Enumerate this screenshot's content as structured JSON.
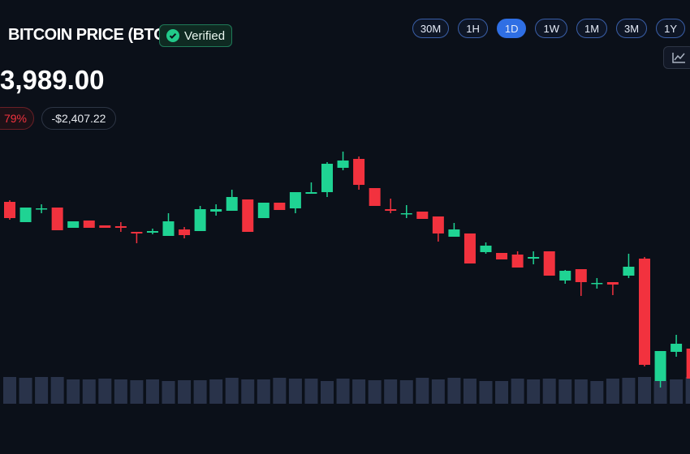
{
  "header": {
    "title": "BITCOIN PRICE (BTC)",
    "badge": "Verified"
  },
  "price": "3,989.00",
  "changes": [
    "79%",
    "-$2,407.22"
  ],
  "timeframes": {
    "options": [
      "30M",
      "1H",
      "1D",
      "1W",
      "1M",
      "3M",
      "1Y"
    ],
    "active": "1D"
  },
  "chart_data": {
    "type": "candlestick",
    "up_color": "#1fd393",
    "down_color": "#f2323e",
    "volume_color": "#29334a",
    "ylim": [
      0,
      400
    ],
    "y2lim": [
      0,
      400
    ],
    "open": [
      231,
      206,
      222,
      224,
      199,
      208,
      202,
      201,
      194,
      193,
      189,
      197,
      195,
      219,
      220,
      234,
      211,
      230,
      223,
      241,
      243,
      273,
      284,
      248,
      222,
      216,
      219,
      213,
      188,
      192,
      169,
      168,
      166,
      161,
      170,
      134,
      148,
      130,
      132,
      140,
      161,
      10,
      46,
      50
    ],
    "high": [
      233,
      224,
      228,
      224,
      207,
      208,
      202,
      206,
      194,
      198,
      217,
      200,
      226,
      228,
      246,
      234,
      230,
      230,
      243,
      255,
      280,
      293,
      287,
      248,
      235,
      227,
      219,
      213,
      205,
      192,
      181,
      168,
      170,
      170,
      170,
      147,
      148,
      137,
      132,
      167,
      163,
      47,
      67,
      50
    ],
    "low": [
      209,
      206,
      217,
      196,
      199,
      199,
      199,
      194,
      180,
      191,
      189,
      186,
      195,
      214,
      220,
      194,
      211,
      221,
      217,
      241,
      237,
      270,
      246,
      226,
      217,
      211,
      210,
      182,
      188,
      155,
      167,
      160,
      150,
      154,
      140,
      130,
      115,
      124,
      116,
      137,
      28,
      2,
      40,
      13
    ],
    "close": [
      211,
      224,
      223,
      196,
      207,
      199,
      199,
      199,
      192,
      195,
      207,
      190,
      222,
      222,
      237,
      194,
      230,
      221,
      243,
      243,
      278,
      282,
      252,
      226,
      220,
      217,
      210,
      192,
      197,
      155,
      177,
      160,
      150,
      163,
      140,
      146,
      132,
      131,
      129,
      151,
      30,
      47,
      56,
      13
    ],
    "volume": [
      33,
      32,
      33,
      33,
      30,
      30,
      31,
      30,
      29,
      30,
      28,
      29,
      29,
      30,
      32,
      30,
      30,
      32,
      31,
      31,
      28,
      31,
      30,
      29,
      30,
      29,
      32,
      30,
      32,
      31,
      28,
      28,
      31,
      30,
      31,
      30,
      30,
      28,
      31,
      32,
      33,
      28,
      30,
      33
    ]
  }
}
